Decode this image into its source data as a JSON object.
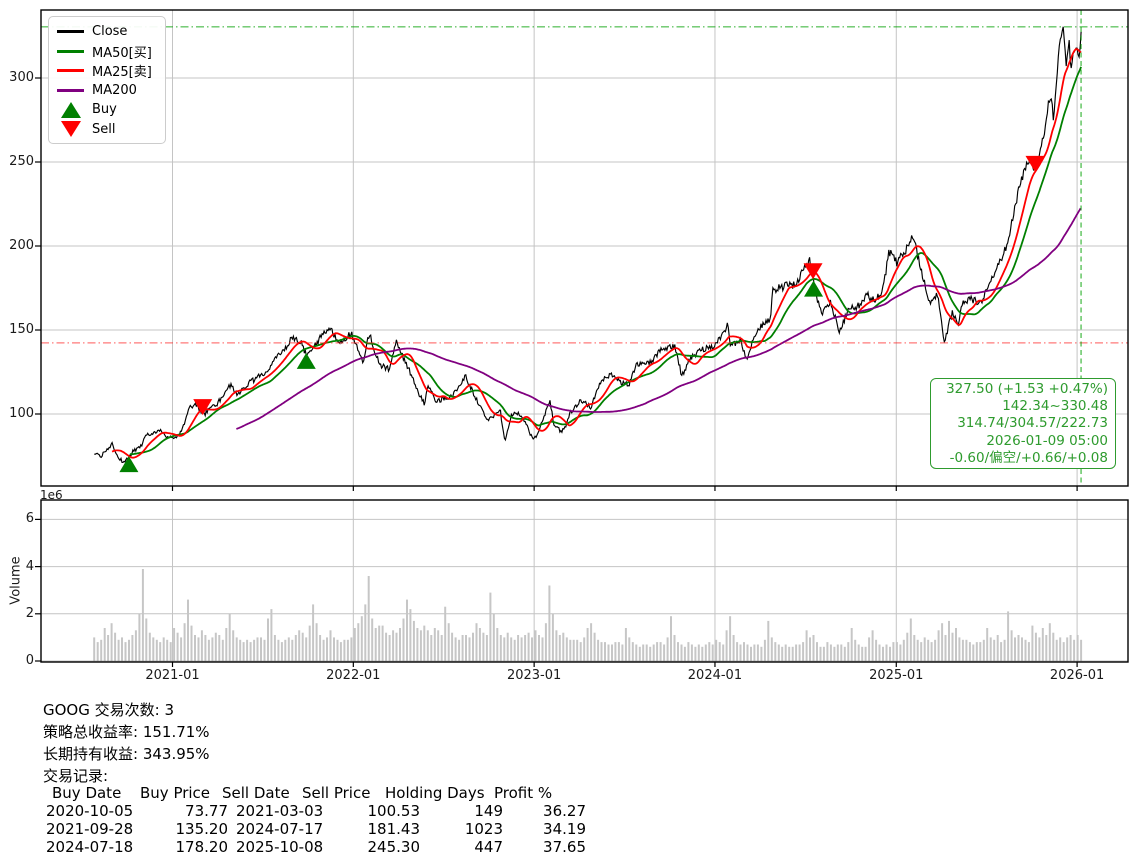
{
  "figure": {
    "symbol": "GOOG",
    "accent_green": "#2e9b2e",
    "grid_color": "#c4c4c4"
  },
  "legend": {
    "items": [
      {
        "label": "Close",
        "color": "#000000",
        "marker": "line"
      },
      {
        "label": "MA50[买]",
        "color": "#008000",
        "marker": "line"
      },
      {
        "label": "MA25[卖]",
        "color": "#ff0000",
        "marker": "line"
      },
      {
        "label": "MA200",
        "color": "#800080",
        "marker": "line"
      },
      {
        "label": "Buy",
        "color": "#008000",
        "marker": "triangle-up"
      },
      {
        "label": "Sell",
        "color": "#ff0000",
        "marker": "triangle-down"
      }
    ]
  },
  "info_box": {
    "color": "#2e9b2e",
    "lines": [
      "327.50 (+1.53 +0.47%)",
      "142.34~330.48",
      "314.74/304.57/222.73",
      "2026-01-09 05:00",
      "-0.60/偏空/+0.66/+0.08"
    ]
  },
  "summary": {
    "line1": "GOOG 交易次数: 3",
    "line2": "策略总收益率: 151.71%",
    "line3": "长期持有收益: 343.95%",
    "line4": "交易记录:"
  },
  "trade_table": {
    "header": [
      "Buy Date",
      "Buy Price",
      "Sell Date",
      "Sell Price",
      "Holding Days",
      "Profit %"
    ],
    "rows": [
      [
        "2020-10-05",
        "73.77",
        "2021-03-03",
        "100.53",
        "149",
        "36.27"
      ],
      [
        "2021-09-28",
        "135.20",
        "2024-07-17",
        "181.43",
        "1023",
        "34.19"
      ],
      [
        "2024-07-18",
        "178.20",
        "2025-10-08",
        "245.30",
        "447",
        "37.65"
      ]
    ]
  },
  "chart_data": [
    {
      "type": "line",
      "panel": "price",
      "title": "",
      "xlabel": "",
      "ylabel": "",
      "ylim": [
        55,
        341
      ],
      "yticks": [
        100,
        150,
        200,
        250,
        300
      ],
      "xticks": [
        "2021-01",
        "2022-01",
        "2023-01",
        "2024-01",
        "2025-01",
        "2026-01"
      ],
      "grid": true,
      "legend_position": "upper-left",
      "series": [
        {
          "name": "Close",
          "color": "#000000",
          "points": [
            [
              "2020-07-27",
              76.2
            ],
            [
              "2020-08-10",
              74.9
            ],
            [
              "2020-08-26",
              80.5
            ],
            [
              "2020-09-02",
              82.2
            ],
            [
              "2020-09-10",
              75.8
            ],
            [
              "2020-09-23",
              71.3
            ],
            [
              "2020-10-05",
              73.8
            ],
            [
              "2020-10-13",
              77.8
            ],
            [
              "2020-10-30",
              80.9
            ],
            [
              "2020-11-09",
              87.8
            ],
            [
              "2020-11-24",
              88.5
            ],
            [
              "2020-12-09",
              90.2
            ],
            [
              "2020-12-21",
              86.6
            ],
            [
              "2021-01-04",
              86.3
            ],
            [
              "2021-01-14",
              87.0
            ],
            [
              "2021-01-26",
              95.8
            ],
            [
              "2021-02-03",
              103.5
            ],
            [
              "2021-02-16",
              105.2
            ],
            [
              "2021-03-03",
              100.5
            ],
            [
              "2021-03-08",
              100.2
            ],
            [
              "2021-03-17",
              103.8
            ],
            [
              "2021-04-01",
              106.0
            ],
            [
              "2021-04-29",
              117.8
            ],
            [
              "2021-05-12",
              111.3
            ],
            [
              "2021-06-03",
              118.2
            ],
            [
              "2021-06-21",
              121.5
            ],
            [
              "2021-07-12",
              126.0
            ],
            [
              "2021-07-27",
              132.0
            ],
            [
              "2021-08-13",
              138.2
            ],
            [
              "2021-09-01",
              145.6
            ],
            [
              "2021-09-17",
              142.8
            ],
            [
              "2021-09-28",
              135.2
            ],
            [
              "2021-10-13",
              139.5
            ],
            [
              "2021-11-02",
              148.8
            ],
            [
              "2021-11-18",
              150.0
            ],
            [
              "2021-12-03",
              142.1
            ],
            [
              "2021-12-28",
              147.9
            ],
            [
              "2022-01-21",
              129.8
            ],
            [
              "2022-02-02",
              148.1
            ],
            [
              "2022-02-23",
              128.9
            ],
            [
              "2022-03-14",
              126.8
            ],
            [
              "2022-03-29",
              142.9
            ],
            [
              "2022-04-21",
              128.0
            ],
            [
              "2022-05-09",
              114.9
            ],
            [
              "2022-05-24",
              105.9
            ],
            [
              "2022-06-02",
              117.5
            ],
            [
              "2022-06-16",
              106.8
            ],
            [
              "2022-07-01",
              109.2
            ],
            [
              "2022-07-21",
              110.9
            ],
            [
              "2022-08-15",
              122.6
            ],
            [
              "2022-09-06",
              108.8
            ],
            [
              "2022-09-30",
              95.7
            ],
            [
              "2022-10-24",
              102.9
            ],
            [
              "2022-11-03",
              83.5
            ],
            [
              "2022-11-15",
              98.7
            ],
            [
              "2022-11-30",
              101.1
            ],
            [
              "2022-12-13",
              95.5
            ],
            [
              "2022-12-28",
              86.0
            ],
            [
              "2023-01-05",
              86.5
            ],
            [
              "2023-01-20",
              98.0
            ],
            [
              "2023-02-02",
              107.9
            ],
            [
              "2023-02-09",
              94.9
            ],
            [
              "2023-02-24",
              89.2
            ],
            [
              "2023-03-08",
              94.3
            ],
            [
              "2023-03-16",
              101.3
            ],
            [
              "2023-04-06",
              108.4
            ],
            [
              "2023-04-25",
              103.9
            ],
            [
              "2023-05-17",
              120.1
            ],
            [
              "2023-06-07",
              123.7
            ],
            [
              "2023-06-26",
              118.3
            ],
            [
              "2023-07-12",
              118.1
            ],
            [
              "2023-07-27",
              129.4
            ],
            [
              "2023-08-11",
              129.8
            ],
            [
              "2023-08-22",
              130.0
            ],
            [
              "2023-09-14",
              138.2
            ],
            [
              "2023-10-12",
              141.0
            ],
            [
              "2023-10-26",
              122.3
            ],
            [
              "2023-11-10",
              132.6
            ],
            [
              "2023-12-07",
              138.5
            ],
            [
              "2023-12-29",
              139.7
            ],
            [
              "2024-01-29",
              153.6
            ],
            [
              "2024-01-31",
              140.1
            ],
            [
              "2024-02-22",
              143.5
            ],
            [
              "2024-03-05",
              132.7
            ],
            [
              "2024-03-27",
              151.0
            ],
            [
              "2024-04-22",
              156.3
            ],
            [
              "2024-04-26",
              173.7
            ],
            [
              "2024-05-24",
              176.3
            ],
            [
              "2024-06-10",
              176.6
            ],
            [
              "2024-07-10",
              191.2
            ],
            [
              "2024-07-17",
              181.4
            ],
            [
              "2024-07-18",
              178.2
            ],
            [
              "2024-07-25",
              167.3
            ],
            [
              "2024-08-05",
              159.3
            ],
            [
              "2024-08-20",
              167.1
            ],
            [
              "2024-09-09",
              148.7
            ],
            [
              "2024-09-27",
              163.2
            ],
            [
              "2024-10-22",
              164.5
            ],
            [
              "2024-11-01",
              171.1
            ],
            [
              "2024-11-21",
              167.6
            ],
            [
              "2024-12-06",
              174.7
            ],
            [
              "2024-12-17",
              196.7
            ],
            [
              "2025-01-02",
              190.4
            ],
            [
              "2025-01-21",
              198.1
            ],
            [
              "2025-02-04",
              207.7
            ],
            [
              "2025-02-20",
              185.3
            ],
            [
              "2025-03-11",
              165.5
            ],
            [
              "2025-03-25",
              171.9
            ],
            [
              "2025-04-08",
              143.0
            ],
            [
              "2025-04-25",
              161.4
            ],
            [
              "2025-05-06",
              151.5
            ],
            [
              "2025-05-14",
              166.6
            ],
            [
              "2025-06-02",
              168.5
            ],
            [
              "2025-06-20",
              166.1
            ],
            [
              "2025-07-09",
              177.6
            ],
            [
              "2025-07-31",
              191.9
            ],
            [
              "2025-08-13",
              201.5
            ],
            [
              "2025-09-03",
              230.7
            ],
            [
              "2025-09-24",
              252.0
            ],
            [
              "2025-10-08",
              245.3
            ],
            [
              "2025-10-28",
              269.9
            ],
            [
              "2025-11-04",
              284.5
            ],
            [
              "2025-11-11",
              291.0
            ],
            [
              "2025-11-14",
              276.0
            ],
            [
              "2025-11-21",
              299.7
            ],
            [
              "2025-11-26",
              320.0
            ],
            [
              "2025-12-04",
              330.0
            ],
            [
              "2025-12-10",
              308.0
            ],
            [
              "2025-12-16",
              322.0
            ],
            [
              "2025-12-19",
              304.0
            ],
            [
              "2025-12-24",
              314.0
            ],
            [
              "2025-12-31",
              318.5
            ],
            [
              "2026-01-05",
              312.0
            ],
            [
              "2026-01-08",
              321.0
            ],
            [
              "2026-01-09",
              327.5
            ]
          ]
        },
        {
          "name": "MA50[买]",
          "color": "#008000",
          "derived": "rolling-mean-of-close",
          "window_days": 72
        },
        {
          "name": "MA25[卖]",
          "color": "#ff0000",
          "derived": "rolling-mean-of-close",
          "window_days": 36
        },
        {
          "name": "MA200",
          "color": "#800080",
          "derived": "rolling-mean-of-close",
          "window_days": 287
        }
      ],
      "markers": {
        "buys": [
          {
            "date": "2020-10-05",
            "price": 73.77
          },
          {
            "date": "2021-09-28",
            "price": 135.2
          },
          {
            "date": "2024-07-18",
            "price": 178.2
          }
        ],
        "sells": [
          {
            "date": "2021-03-03",
            "price": 100.53
          },
          {
            "date": "2024-07-17",
            "price": 181.43
          },
          {
            "date": "2025-10-08",
            "price": 245.3
          }
        ]
      },
      "ref_lines": {
        "hlines": [
          {
            "value": 330.48,
            "color": "#00a000",
            "style": "dashdot"
          },
          {
            "value": 142.34,
            "color": "#ff2222",
            "style": "dashdot"
          }
        ],
        "vlines": [
          {
            "date": "2026-01-09",
            "color": "#00a000",
            "style": "dashed"
          }
        ]
      }
    },
    {
      "type": "bar",
      "panel": "volume",
      "ylabel": "Volume",
      "y_unit": "1e6",
      "ylim": [
        0,
        6.8
      ],
      "yticks": [
        0,
        2,
        4,
        6
      ],
      "bar_color": "#c6c6c6",
      "start": "2020-07-27",
      "end": "2026-01-09",
      "weekly_values_1e6": [
        1.0,
        0.8,
        0.9,
        1.4,
        1.1,
        1.6,
        1.2,
        0.9,
        1.0,
        0.8,
        0.9,
        1.1,
        1.3,
        2.0,
        3.9,
        1.8,
        1.2,
        1.0,
        0.9,
        0.8,
        1.0,
        0.9,
        0.8,
        1.4,
        1.2,
        1.0,
        1.6,
        2.6,
        1.5,
        1.1,
        1.0,
        1.3,
        1.1,
        0.9,
        1.0,
        1.2,
        1.1,
        0.9,
        1.4,
        2.0,
        1.3,
        1.0,
        0.9,
        0.8,
        0.9,
        0.8,
        0.9,
        1.0,
        1.0,
        0.9,
        1.8,
        2.2,
        1.1,
        0.9,
        0.8,
        0.9,
        1.0,
        0.9,
        1.1,
        1.3,
        1.2,
        1.0,
        1.5,
        2.4,
        1.6,
        1.1,
        0.9,
        1.0,
        1.3,
        1.0,
        0.9,
        0.8,
        0.9,
        0.9,
        1.0,
        1.4,
        1.6,
        1.9,
        2.4,
        3.6,
        1.8,
        1.4,
        1.5,
        1.5,
        1.2,
        1.1,
        1.3,
        1.2,
        1.4,
        1.8,
        2.6,
        2.2,
        1.7,
        1.4,
        1.3,
        1.5,
        1.3,
        1.1,
        1.4,
        1.3,
        1.1,
        2.3,
        1.6,
        1.2,
        1.0,
        0.9,
        1.1,
        1.1,
        1.0,
        1.2,
        1.6,
        1.4,
        1.2,
        1.1,
        2.9,
        2.0,
        1.4,
        1.1,
        1.0,
        1.2,
        1.0,
        0.9,
        1.1,
        1.0,
        1.1,
        1.2,
        1.0,
        1.3,
        1.1,
        1.0,
        1.6,
        3.2,
        2.0,
        1.3,
        1.1,
        1.2,
        1.0,
        0.9,
        0.9,
        0.9,
        0.8,
        1.0,
        1.4,
        1.6,
        1.2,
        0.9,
        0.8,
        0.8,
        0.7,
        0.7,
        0.8,
        0.8,
        0.7,
        1.4,
        1.0,
        0.8,
        0.7,
        0.6,
        0.7,
        0.7,
        0.6,
        0.7,
        0.8,
        0.8,
        0.7,
        1.0,
        1.9,
        1.1,
        0.8,
        0.7,
        0.6,
        0.8,
        0.7,
        0.6,
        0.7,
        0.6,
        0.7,
        0.8,
        0.7,
        0.9,
        0.8,
        0.7,
        1.3,
        1.9,
        1.1,
        0.8,
        0.7,
        0.8,
        0.7,
        0.6,
        0.7,
        0.7,
        0.6,
        0.9,
        1.7,
        1.0,
        0.8,
        0.7,
        0.6,
        0.7,
        0.6,
        0.6,
        0.7,
        0.7,
        0.8,
        1.3,
        1.0,
        1.1,
        0.8,
        0.6,
        0.6,
        0.8,
        0.7,
        0.6,
        0.7,
        0.7,
        0.6,
        0.8,
        1.4,
        0.9,
        0.7,
        0.6,
        0.6,
        1.0,
        1.3,
        0.9,
        0.7,
        0.6,
        0.7,
        0.6,
        0.8,
        0.8,
        0.7,
        0.9,
        1.2,
        1.8,
        1.1,
        0.9,
        0.8,
        1.0,
        0.9,
        0.8,
        0.9,
        1.3,
        1.6,
        1.1,
        1.7,
        1.2,
        1.4,
        1.0,
        0.9,
        0.9,
        0.8,
        0.7,
        0.8,
        0.8,
        0.9,
        1.4,
        1.0,
        0.9,
        1.1,
        0.8,
        0.9,
        2.1,
        1.3,
        1.0,
        1.1,
        1.0,
        0.9,
        0.8,
        1.5,
        1.2,
        1.0,
        1.4,
        1.1,
        1.6,
        1.2,
        0.9,
        1.0,
        0.8,
        1.0,
        1.1,
        0.9,
        1.1,
        0.9
      ]
    }
  ]
}
